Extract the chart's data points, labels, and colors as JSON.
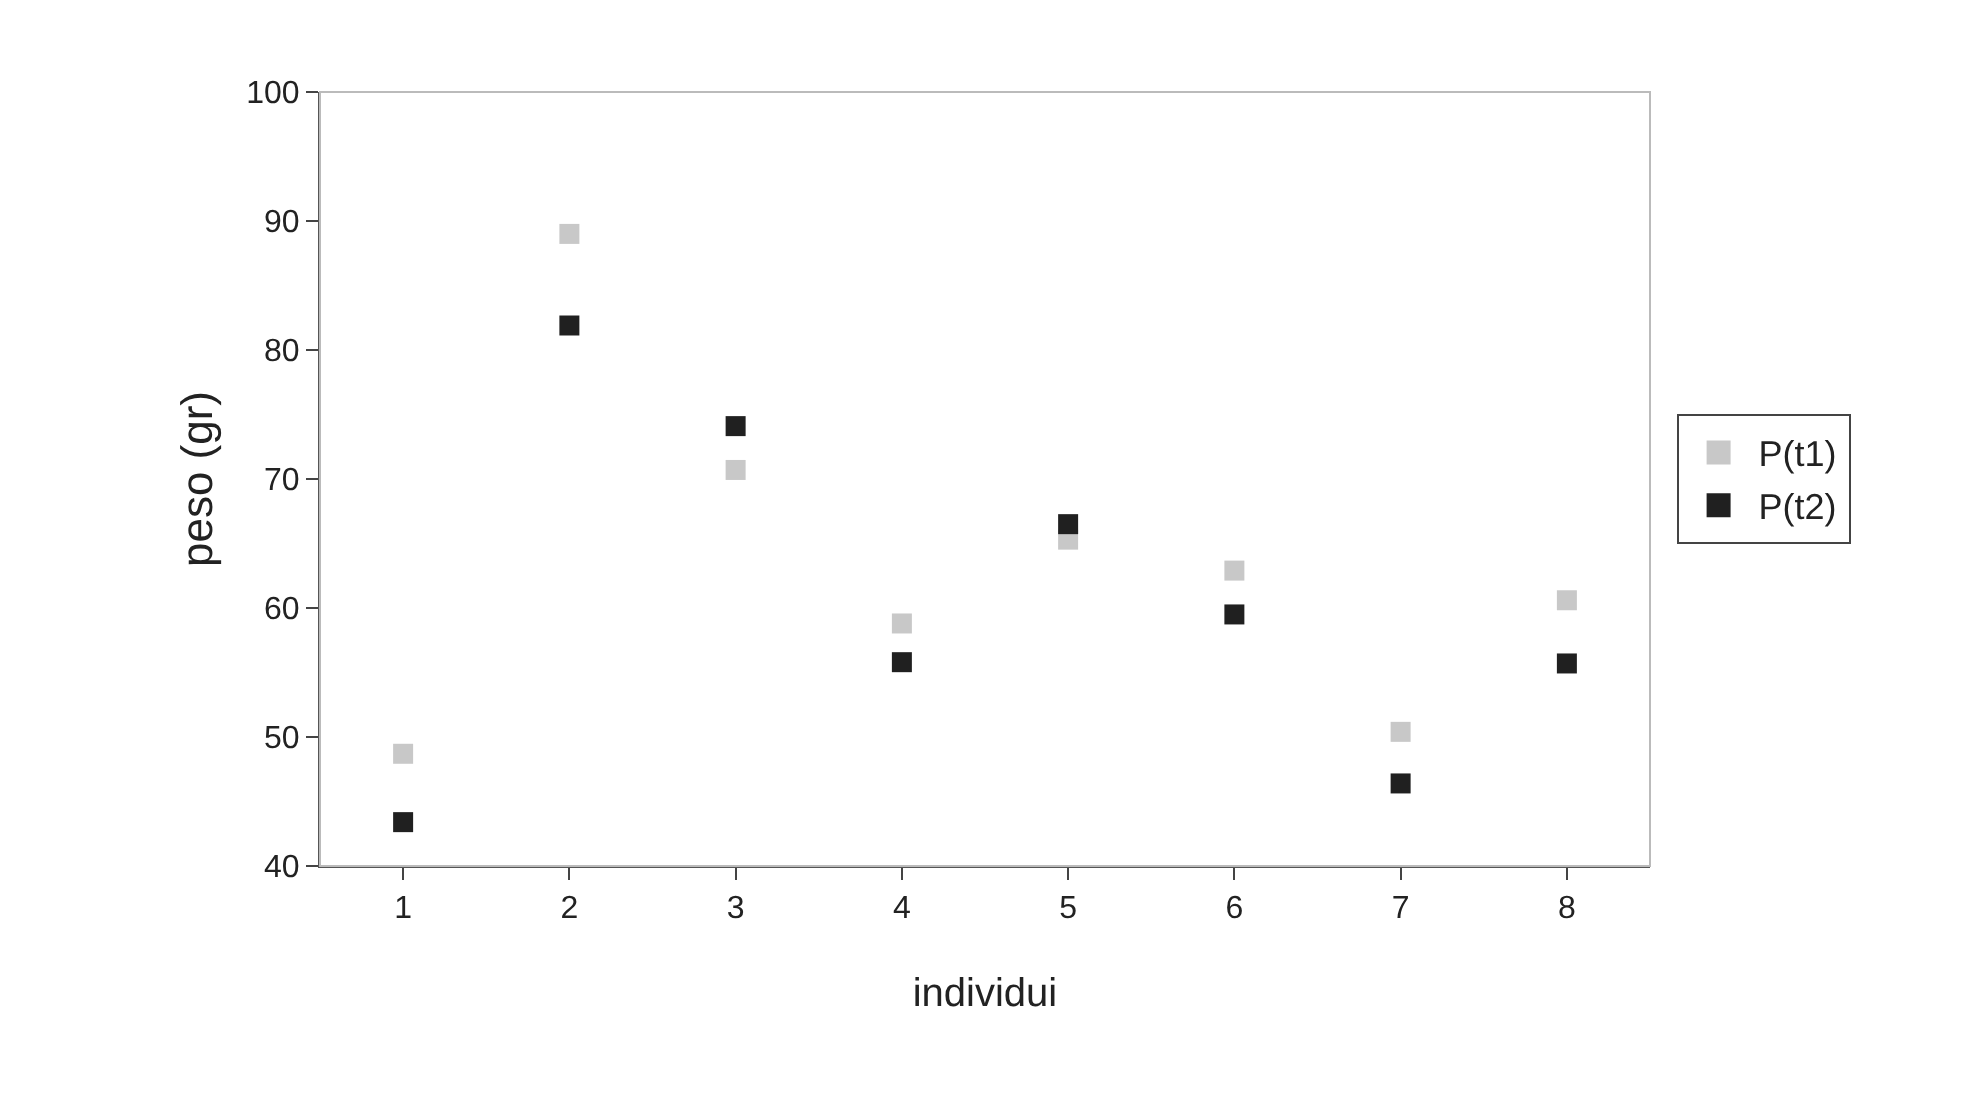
{
  "chart_data": {
    "type": "scatter",
    "xlabel": "individui",
    "ylabel": "peso (gr)",
    "categories": [
      "1",
      "2",
      "3",
      "4",
      "5",
      "6",
      "7",
      "8"
    ],
    "series": [
      {
        "name": "P(t1)",
        "color": "#c8c8c8",
        "values": [
          48.7,
          89.0,
          70.7,
          58.8,
          65.3,
          62.9,
          50.4,
          60.6
        ]
      },
      {
        "name": "P(t2)",
        "color": "#202020",
        "values": [
          43.4,
          81.9,
          74.1,
          55.8,
          66.5,
          59.5,
          46.4,
          55.7
        ]
      }
    ],
    "ylim": [
      40,
      100
    ],
    "yticks": [
      40,
      50,
      60,
      70,
      80,
      90,
      100
    ],
    "grid": false,
    "marker": "square",
    "legend": "right"
  }
}
